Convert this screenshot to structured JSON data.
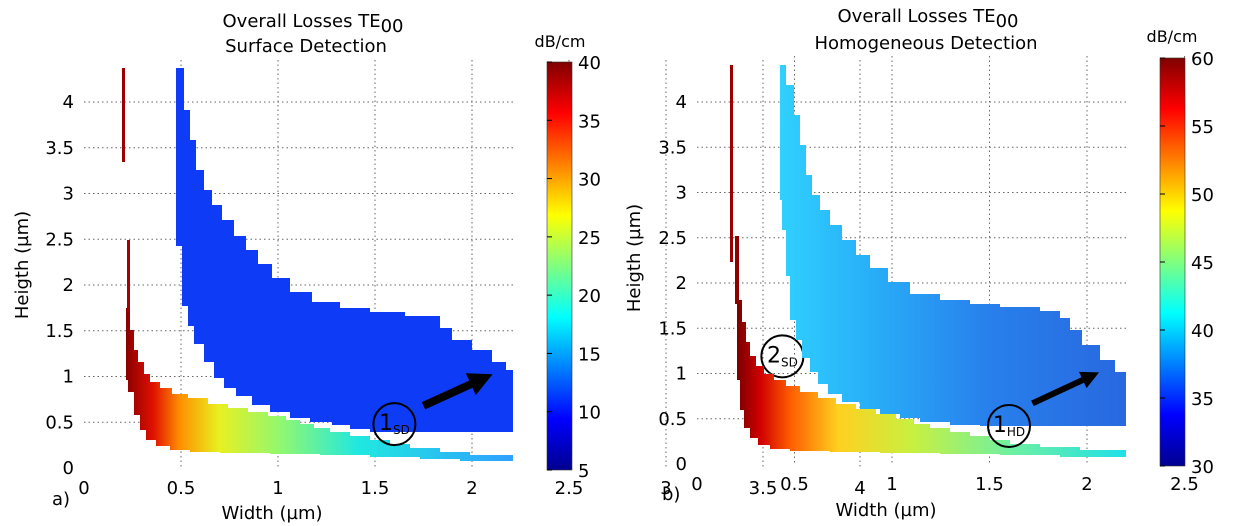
{
  "chart_data": [
    {
      "type": "heatmap",
      "panel_label": "a)",
      "title": "Overall Losses TE",
      "title_subscript": "00",
      "subtitle": "Surface Detection",
      "xlabel": "Width (µm)",
      "ylabel": "Heigth (µm)",
      "xlim": [
        0,
        4.5
      ],
      "ylim": [
        0,
        4.5
      ],
      "x_ticks": [
        "0",
        "0.5",
        "1",
        "1.5",
        "2",
        "2.5",
        "3",
        "3.5",
        "4"
      ],
      "y_ticks": [
        "0",
        "0.5",
        "1",
        "1.5",
        "2",
        "2.5",
        "3",
        "3.5",
        "4"
      ],
      "grid": true,
      "colorbar": {
        "unit": "dB/cm",
        "min": 5,
        "max": 40,
        "ticks": [
          "5",
          "10",
          "15",
          "20",
          "25",
          "30",
          "35",
          "40"
        ]
      },
      "regions": [
        {
          "id": "upper",
          "label_main": "2",
          "label_sub": "SD",
          "label_x": 3.6,
          "label_y": 1.22,
          "value_min": 8,
          "value_max": 11
        },
        {
          "id": "lower",
          "label_main": "1",
          "label_sub": "SD",
          "label_x": 1.6,
          "label_y": 0.48,
          "value_min": 17,
          "value_max": 40
        }
      ],
      "arrow": {
        "from": [
          1.75,
          0.68
        ],
        "to": [
          2.05,
          0.97
        ]
      }
    },
    {
      "type": "heatmap",
      "panel_label": "b)",
      "title": "Overall Losses TE",
      "title_subscript": "00",
      "subtitle": "Homogeneous Detection",
      "xlabel": "Width (µm)",
      "ylabel": "Heigth (µm)",
      "xlim": [
        0,
        4.5
      ],
      "ylim": [
        0,
        4.5
      ],
      "x_ticks": [
        "0",
        "0.5",
        "1",
        "1.5",
        "2",
        "2.5",
        "3",
        "3.5",
        "4"
      ],
      "y_ticks": [
        "0",
        "0.5",
        "1",
        "1.5",
        "2",
        "2.5",
        "3",
        "3.5",
        "4"
      ],
      "grid": true,
      "colorbar": {
        "unit": "dB/cm",
        "min": 30,
        "max": 60,
        "ticks": [
          "30",
          "35",
          "40",
          "45",
          "50",
          "55",
          "60"
        ]
      },
      "regions": [
        {
          "id": "upper",
          "label_main": "2",
          "label_sub": "HD",
          "label_x": 3.6,
          "label_y": 1.33,
          "value_min": 34,
          "value_max": 40
        },
        {
          "id": "lower",
          "label_main": "1",
          "label_sub": "HD",
          "label_x": 1.6,
          "label_y": 0.42,
          "value_min": 40,
          "value_max": 60
        }
      ],
      "arrow": {
        "from": [
          1.72,
          0.67
        ],
        "to": [
          2.02,
          0.97
        ]
      }
    }
  ]
}
